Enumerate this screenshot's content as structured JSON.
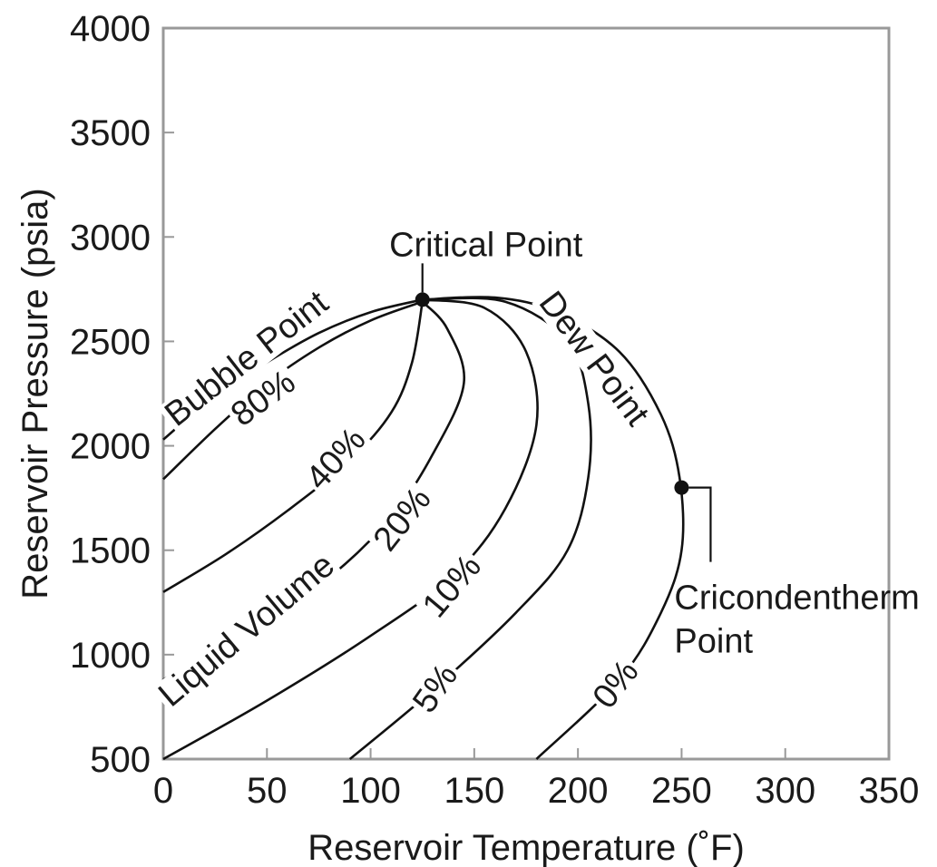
{
  "chart_data": {
    "type": "line",
    "title": "",
    "xlabel": "Reservoir Temperature (˚F)",
    "ylabel": "Reservoir Pressure (psia)",
    "xlim": [
      0,
      350
    ],
    "ylim": [
      500,
      4000
    ],
    "x_ticks": [
      "0",
      "50",
      "100",
      "150",
      "200",
      "250",
      "300",
      "350"
    ],
    "y_ticks": [
      "500",
      "1000",
      "1500",
      "2000",
      "2500",
      "3000",
      "3500",
      "4000"
    ],
    "grid": false,
    "series": [
      {
        "key": "bubble",
        "name": "Bubble Point",
        "points": [
          [
            0,
            2030
          ],
          [
            25,
            2240
          ],
          [
            50,
            2400
          ],
          [
            75,
            2540
          ],
          [
            100,
            2640
          ],
          [
            125,
            2700
          ]
        ]
      },
      {
        "key": "p80",
        "name": "80%",
        "points": [
          [
            0,
            1840
          ],
          [
            25,
            2080
          ],
          [
            50,
            2300
          ],
          [
            75,
            2470
          ],
          [
            100,
            2600
          ],
          [
            125,
            2690
          ]
        ]
      },
      {
        "key": "p40",
        "name": "40%",
        "points": [
          [
            0,
            1300
          ],
          [
            30,
            1480
          ],
          [
            60,
            1690
          ],
          [
            90,
            1930
          ],
          [
            110,
            2160
          ],
          [
            120,
            2400
          ],
          [
            125,
            2690
          ]
        ]
      },
      {
        "key": "p20",
        "name": "20%",
        "points": [
          [
            0,
            880
          ],
          [
            40,
            1110
          ],
          [
            80,
            1370
          ],
          [
            110,
            1660
          ],
          [
            130,
            1960
          ],
          [
            145,
            2300
          ],
          [
            137,
            2560
          ],
          [
            125,
            2690
          ]
        ]
      },
      {
        "key": "p10",
        "name": "10%",
        "points": [
          [
            0,
            500
          ],
          [
            50,
            780
          ],
          [
            100,
            1090
          ],
          [
            140,
            1380
          ],
          [
            165,
            1700
          ],
          [
            180,
            2100
          ],
          [
            175,
            2450
          ],
          [
            155,
            2660
          ],
          [
            125,
            2700
          ]
        ]
      },
      {
        "key": "p5",
        "name": "5%",
        "points": [
          [
            90,
            500
          ],
          [
            130,
            830
          ],
          [
            170,
            1200
          ],
          [
            195,
            1500
          ],
          [
            205,
            1850
          ],
          [
            205,
            2200
          ],
          [
            195,
            2500
          ],
          [
            165,
            2690
          ],
          [
            125,
            2700
          ]
        ]
      },
      {
        "key": "dew",
        "name": "Dew Point",
        "points": [
          [
            180,
            500
          ],
          [
            220,
            880
          ],
          [
            240,
            1200
          ],
          [
            250,
            1500
          ],
          [
            249,
            1850
          ],
          [
            240,
            2150
          ],
          [
            220,
            2450
          ],
          [
            190,
            2640
          ],
          [
            160,
            2710
          ],
          [
            125,
            2700
          ]
        ]
      }
    ],
    "curve_labels": [
      {
        "text": "Bubble Point",
        "x": 40,
        "y": 2420,
        "angle": -38
      },
      {
        "text": "80%",
        "x": 48,
        "y": 2230,
        "angle": -36
      },
      {
        "text": "40%",
        "x": 83,
        "y": 1940,
        "angle": -48
      },
      {
        "text": "Liquid Volume",
        "x": 40,
        "y": 1120,
        "angle": -40
      },
      {
        "text": "20%",
        "x": 115,
        "y": 1650,
        "angle": -52
      },
      {
        "text": "10%",
        "x": 139,
        "y": 1330,
        "angle": -50
      },
      {
        "text": "5%",
        "x": 131,
        "y": 840,
        "angle": -55
      },
      {
        "text": "0%",
        "x": 218,
        "y": 860,
        "angle": -52
      },
      {
        "text": "Dew Point",
        "x": 208,
        "y": 2420,
        "angle": 53
      }
    ],
    "critical_point": {
      "label": "Critical Point",
      "x": 125,
      "y": 2700
    },
    "cricondentherm_point": {
      "label_line1": "Cricondentherm",
      "label_line2": "Point",
      "x": 250,
      "y": 1800
    }
  }
}
